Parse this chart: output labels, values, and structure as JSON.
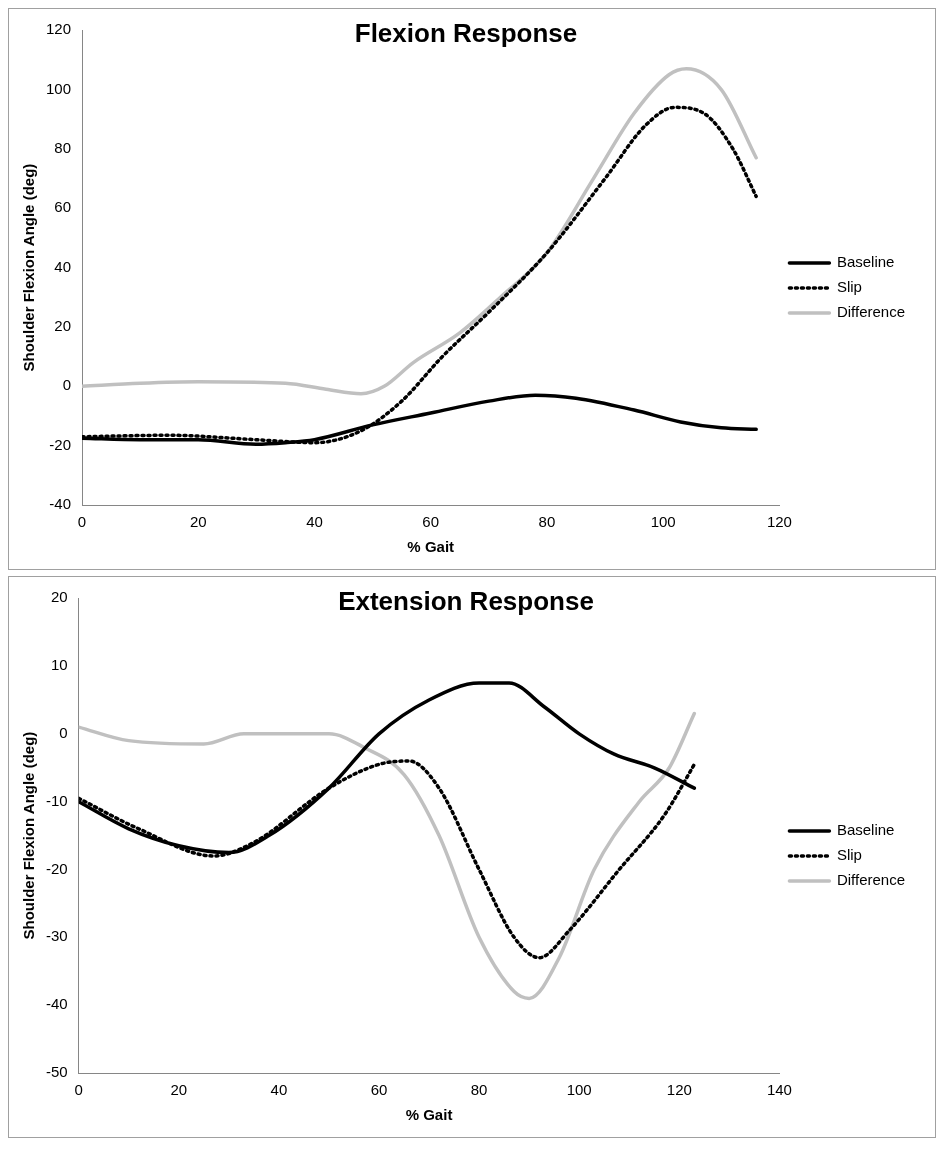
{
  "chart_data": [
    {
      "type": "line",
      "title": "Flexion Response",
      "xlabel": "% Gait",
      "ylabel": "Shoulder Flexion Angle (deg)",
      "xlim": [
        0,
        120
      ],
      "ylim": [
        -40,
        120
      ],
      "xticks": [
        0,
        20,
        40,
        60,
        80,
        100,
        120
      ],
      "yticks": [
        -40,
        -20,
        0,
        20,
        40,
        60,
        80,
        100,
        120
      ],
      "legend": "right",
      "grid": false,
      "marker": "none",
      "series": [
        {
          "name": "Baseline",
          "color": "#000000",
          "line_style": "solid",
          "x": [
            0,
            10,
            20,
            30,
            35,
            40,
            50,
            60,
            70,
            78,
            85,
            95,
            103,
            110,
            116
          ],
          "values": [
            -17.5,
            -18,
            -18,
            -19.5,
            -19,
            -18,
            -13,
            -9,
            -5,
            -3,
            -4,
            -8,
            -12,
            -14,
            -14.5
          ]
        },
        {
          "name": "Slip",
          "color": "#000000",
          "line_style": "dotted",
          "x": [
            0,
            15,
            30,
            40,
            48,
            55,
            62,
            70,
            80,
            90,
            97,
            102,
            107,
            112,
            116
          ],
          "values": [
            -17,
            -16.5,
            -18,
            -19,
            -15,
            -5,
            10,
            25,
            45,
            70,
            88,
            94,
            92,
            80,
            64
          ]
        },
        {
          "name": "Difference",
          "color": "#c0c0c0",
          "line_style": "solid",
          "x": [
            0,
            10,
            20,
            35,
            42,
            48,
            52,
            57,
            65,
            72,
            80,
            88,
            95,
            101,
            104,
            110,
            116
          ],
          "values": [
            0,
            1,
            1.5,
            1,
            -1,
            -2.5,
            0,
            8,
            18,
            30,
            45,
            70,
            92,
            105,
            107,
            100,
            77
          ]
        }
      ]
    },
    {
      "type": "line",
      "title": "Extension Response",
      "xlabel": "% Gait",
      "ylabel": "Shoulder Flexion Angle (deg)",
      "xlim": [
        0,
        140
      ],
      "ylim": [
        -50,
        20
      ],
      "xticks": [
        0,
        20,
        40,
        60,
        80,
        100,
        120,
        140
      ],
      "yticks": [
        -50,
        -40,
        -30,
        -20,
        -10,
        0,
        10,
        20
      ],
      "legend": "right",
      "grid": false,
      "marker": "none",
      "series": [
        {
          "name": "Baseline",
          "color": "#000000",
          "line_style": "solid",
          "x": [
            0,
            10,
            20,
            30,
            38,
            50,
            60,
            70,
            80,
            86,
            93,
            100,
            107,
            115,
            123
          ],
          "values": [
            -10,
            -14,
            -16.5,
            -17.5,
            -15,
            -8,
            0,
            5,
            7.5,
            7.5,
            4,
            0,
            -3,
            -5,
            -8
          ]
        },
        {
          "name": "Slip",
          "color": "#000000",
          "line_style": "dotted",
          "x": [
            0,
            12,
            27,
            35,
            50,
            60,
            66,
            72,
            80,
            87,
            92,
            98,
            108,
            117,
            123
          ],
          "values": [
            -9.5,
            -14,
            -18,
            -16,
            -8,
            -4.5,
            -4,
            -8,
            -20,
            -30,
            -33,
            -29,
            -20,
            -12,
            -4.5
          ]
        },
        {
          "name": "Difference",
          "color": "#c0c0c0",
          "line_style": "solid",
          "x": [
            0,
            10,
            25,
            33,
            45,
            50,
            57,
            65,
            72,
            80,
            87,
            90,
            96,
            103,
            112,
            118,
            123
          ],
          "values": [
            1,
            -1,
            -1.5,
            0,
            0,
            0,
            -2,
            -6,
            -15,
            -30,
            -38,
            -39,
            -33,
            -20,
            -10,
            -5,
            3
          ]
        }
      ]
    }
  ]
}
